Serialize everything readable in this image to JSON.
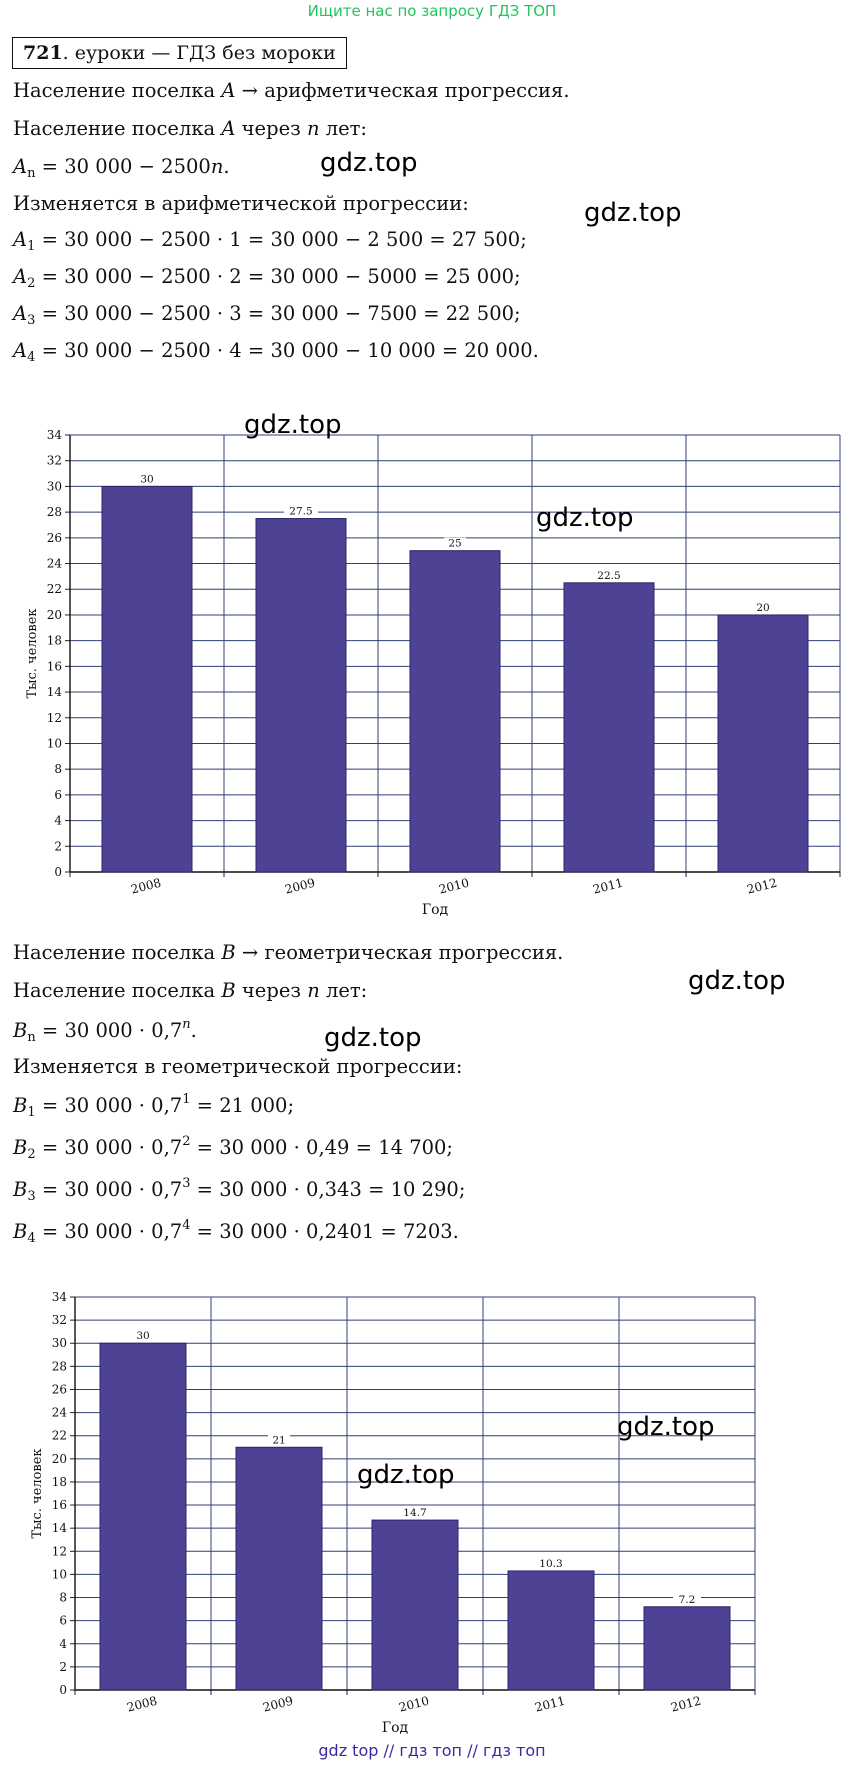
{
  "banner": "Ищите нас по запросу ГДЗ ТОП",
  "task": {
    "number": "721",
    "source": ". еуроки — ГДЗ без мороки"
  },
  "section_a": {
    "line1": "Население поселка A → арифметическая прогрессия.",
    "line2": "Население поселка A через n лет:",
    "formula": "A_n = 30 000 − 2500n.",
    "line3": "Изменяется в арифметической прогрессии:",
    "items": [
      "A_1 = 30 000 − 2500 · 1 = 30 000 − 2 500 = 27 500;",
      "A_2 = 30 000 − 2500 · 2 = 30 000 − 5000 = 25 000;",
      "A_3 = 30 000 − 2500 · 3 = 30 000 − 7500 = 22 500;",
      "A_4 = 30 000 − 2500 · 4 = 30 000 − 10 000 = 20 000."
    ]
  },
  "section_b": {
    "line1": "Население поселка B → геометрическая прогрессия.",
    "line2": "Население поселка B через n лет:",
    "formula": "B_n = 30 000 · 0,7^n.",
    "line3": "Изменяется в геометрической прогрессии:",
    "items": [
      "B_1 = 30 000 · 0,7^1 = 21 000;",
      "B_2 = 30 000 · 0,7^2 = 30 000 · 0,49 = 14 700;",
      "B_3 = 30 000 · 0,7^3 = 30 000 · 0,343 = 10 290;",
      "B_4 = 30 000 · 0,7^4 = 30 000 · 0,2401 = 7203."
    ]
  },
  "watermark": "gdz.top",
  "chart_data": [
    {
      "type": "bar",
      "categories": [
        "2008",
        "2009",
        "2010",
        "2011",
        "2012"
      ],
      "values": [
        30,
        27.5,
        25,
        22.5,
        20
      ],
      "data_labels": [
        "30",
        "27.5",
        "25",
        "22.5",
        "20"
      ],
      "xlabel": "Год",
      "ylabel": "Тыс. человек",
      "ylim": [
        0,
        34
      ],
      "yticks": [
        0,
        2,
        4,
        6,
        8,
        10,
        12,
        14,
        16,
        18,
        20,
        22,
        24,
        26,
        28,
        30,
        32,
        34
      ],
      "grid": true,
      "bar_color": "#4e4295"
    },
    {
      "type": "bar",
      "categories": [
        "2008",
        "2009",
        "2010",
        "2011",
        "2012"
      ],
      "values": [
        30,
        21,
        14.7,
        10.3,
        7.2
      ],
      "data_labels": [
        "30",
        "21",
        "14.7",
        "10.3",
        "7.2"
      ],
      "xlabel": "Год",
      "ylabel": "Тыс. человек",
      "ylim": [
        0,
        34
      ],
      "yticks": [
        0,
        2,
        4,
        6,
        8,
        10,
        12,
        14,
        16,
        18,
        20,
        22,
        24,
        26,
        28,
        30,
        32,
        34
      ],
      "grid": true,
      "bar_color": "#4e4295"
    }
  ],
  "footer_links": [
    "gdz top",
    "гдз топ",
    "гдз топ"
  ],
  "footer_sep": "//"
}
